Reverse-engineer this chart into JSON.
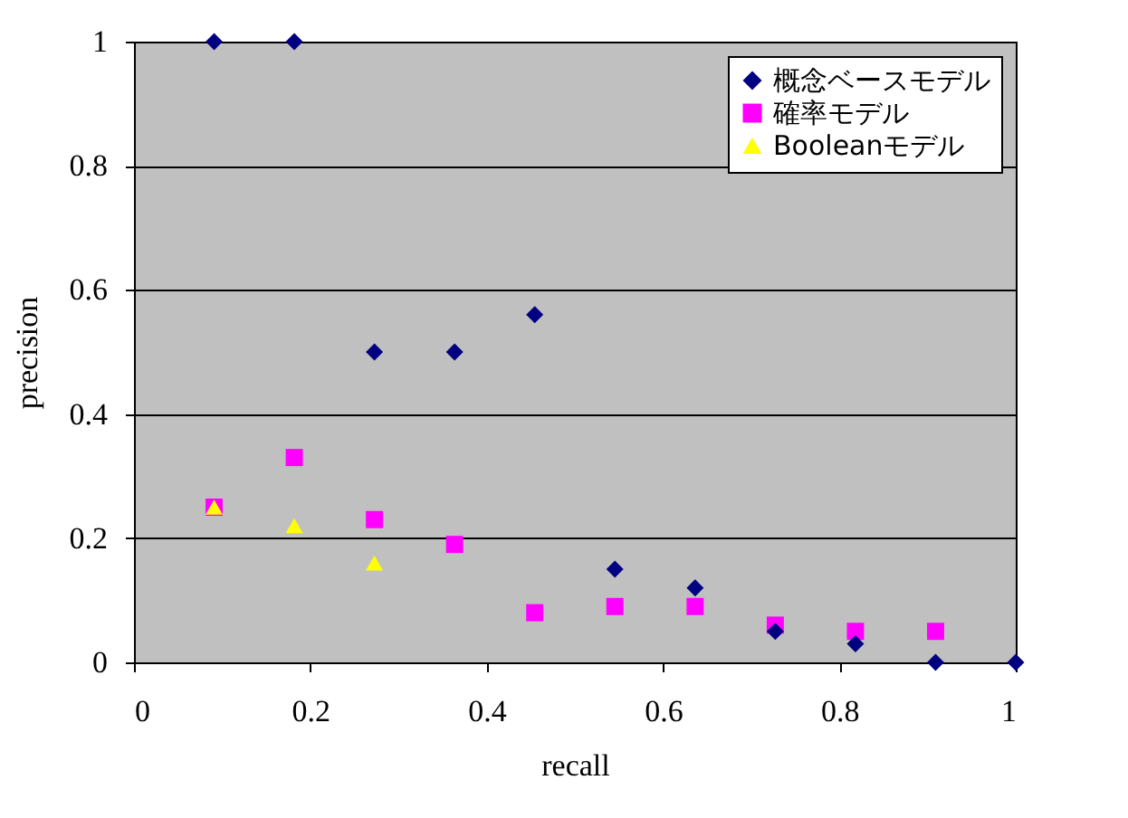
{
  "chart_data": {
    "type": "scatter",
    "xlabel": "recall",
    "ylabel": "precision",
    "x": [
      0.0909,
      0.1818,
      0.2727,
      0.3636,
      0.4545,
      0.5454,
      0.6364,
      0.7273,
      0.8182,
      0.9091,
      1.0
    ],
    "series": [
      {
        "name": "概念ベースモデル",
        "color": "#000080",
        "marker": "diamond",
        "values": [
          1.0,
          1.0,
          0.5,
          0.5,
          0.56,
          0.15,
          0.12,
          0.05,
          0.03,
          0.0,
          0.0
        ]
      },
      {
        "name": "確率モデル",
        "color": "#ff00ff",
        "marker": "square",
        "values": [
          0.25,
          0.33,
          0.23,
          0.19,
          0.08,
          0.09,
          0.09,
          0.06,
          0.05,
          0.05,
          null
        ]
      },
      {
        "name": "Booleanモデル",
        "color": "#ffff00",
        "marker": "triangle",
        "values": [
          0.25,
          0.22,
          0.16,
          null,
          null,
          null,
          null,
          null,
          null,
          null,
          null
        ]
      }
    ],
    "xlim": [
      0,
      1
    ],
    "xticks": [
      0,
      0.2,
      0.4,
      0.6,
      0.8,
      1
    ],
    "ylim": [
      0,
      1
    ],
    "yticks": [
      0,
      0.2,
      0.4,
      0.6,
      0.8,
      1
    ],
    "grid": "y",
    "legend": "top right"
  }
}
